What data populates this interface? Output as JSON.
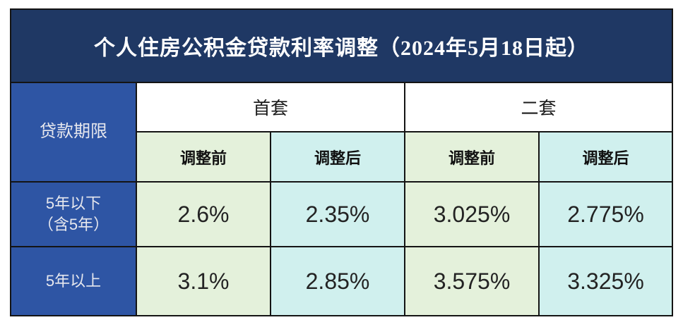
{
  "title": "个人住房公积金贷款利率调整（2024年5月18日起）",
  "table": {
    "corner_header": "贷款期限",
    "groups": [
      {
        "label": "首套"
      },
      {
        "label": "二套"
      }
    ],
    "sub_headers": [
      "调整前",
      "调整后",
      "调整前",
      "调整后"
    ],
    "rows": [
      {
        "label_line1": "5年以下",
        "label_line2": "（含5年）",
        "values": [
          "2.6%",
          "2.35%",
          "3.025%",
          "2.775%"
        ]
      },
      {
        "label_line1": "5年以上",
        "label_line2": "",
        "values": [
          "3.1%",
          "2.85%",
          "3.575%",
          "3.325%"
        ]
      }
    ]
  },
  "colors": {
    "title_bg": "#1F3864",
    "header_column_bg": "#2E55A4",
    "before_adjust_bg": "#E4F1DB",
    "after_adjust_bg": "#D0F0EE",
    "grid_line": "#141414",
    "title_text": "#FFFFFF",
    "data_text": "#232323"
  },
  "chart_data": {
    "type": "table",
    "title": "个人住房公积金贷款利率调整（2024年5月18日起）",
    "columns": [
      "贷款期限",
      "首套-调整前",
      "首套-调整后",
      "二套-调整前",
      "二套-调整后"
    ],
    "rows": [
      [
        "5年以下（含5年）",
        "2.6%",
        "2.35%",
        "3.025%",
        "2.775%"
      ],
      [
        "5年以上",
        "3.1%",
        "2.85%",
        "3.575%",
        "3.325%"
      ]
    ]
  }
}
